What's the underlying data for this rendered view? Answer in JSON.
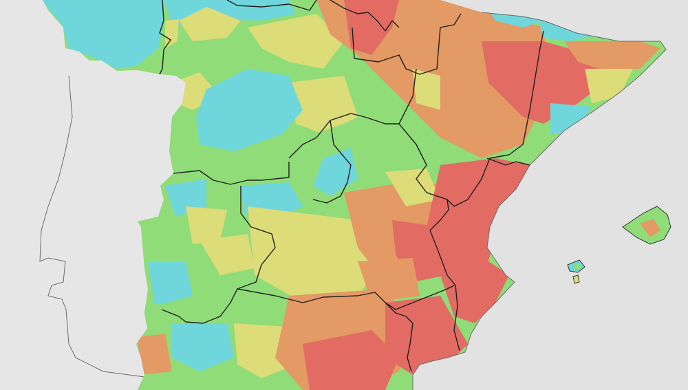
{
  "map": {
    "type": "choropleth",
    "country": "Spain",
    "legend": [],
    "palette": {
      "sea": "#e2e2e2",
      "land_outside": "#e6e6e6",
      "cyan": "#6fd6dc",
      "green": "#8fdc78",
      "yellow": "#dcdc78",
      "orange": "#e39a64",
      "red": "#e26b64"
    },
    "features": [
      "portugal-outline",
      "spain-mainland",
      "balearic-islands",
      "ibiza",
      "autonomous-community-borders"
    ]
  }
}
